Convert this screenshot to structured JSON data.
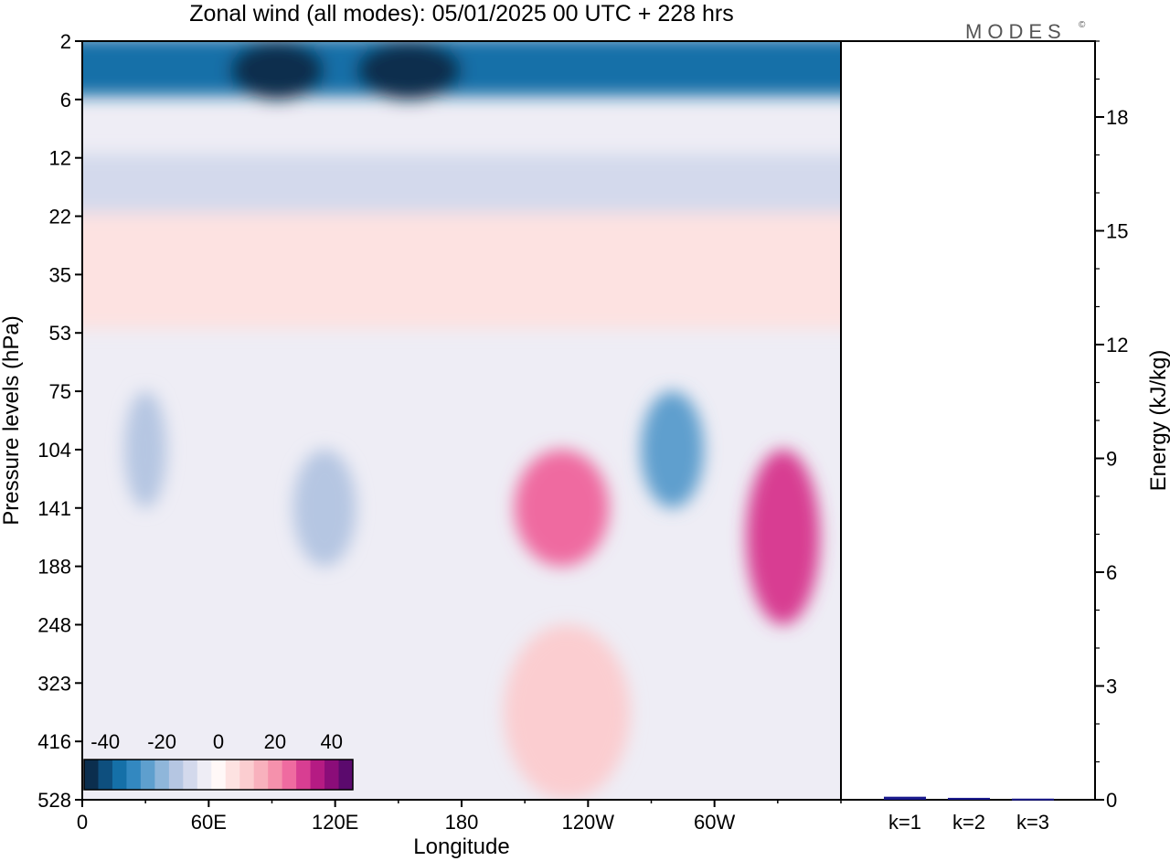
{
  "logo": {
    "text": "MODES",
    "mark": "©"
  },
  "chart_data": [
    {
      "type": "heatmap",
      "title": "Zonal wind (all modes):  05/01/2025  00 UTC  + 228 hrs",
      "xlabel": "Longitude",
      "ylabel": "Pressure levels (hPa)",
      "x_tick_labels": [
        "0",
        "60E",
        "120E",
        "180",
        "120W",
        "60W"
      ],
      "x_range_deg": [
        0,
        360
      ],
      "y_tick_labels": [
        "2",
        "6",
        "12",
        "22",
        "35",
        "53",
        "75",
        "104",
        "141",
        "188",
        "248",
        "323",
        "416",
        "528"
      ],
      "colorbar": {
        "tick_labels": [
          "-40",
          "-20",
          "0",
          "20",
          "40"
        ],
        "levels": [
          -45,
          -40,
          -35,
          -30,
          -25,
          -20,
          -15,
          -10,
          -5,
          0,
          5,
          10,
          15,
          20,
          25,
          30,
          35,
          40,
          45
        ],
        "colors": [
          "#0b2e4e",
          "#0e4f7e",
          "#1570a8",
          "#3388c0",
          "#5e9fce",
          "#8fb6da",
          "#b5c6e2",
          "#d3d9ec",
          "#eeedf5",
          "#fff8f7",
          "#fde2e1",
          "#fbcdd0",
          "#f8b1bd",
          "#f591ac",
          "#ef6ba0",
          "#d83e92",
          "#b51b83",
          "#8b0d79",
          "#5b0a6d"
        ]
      },
      "features": [
        {
          "lon": [
            0,
            360
          ],
          "levels": [
            "2",
            "6"
          ],
          "value": -35
        },
        {
          "lon": [
            70,
            115
          ],
          "levels": [
            "2",
            "6"
          ],
          "value": -45
        },
        {
          "lon": [
            130,
            180
          ],
          "levels": [
            "2",
            "6"
          ],
          "value": -45
        },
        {
          "lon": [
            0,
            360
          ],
          "levels": [
            "12",
            "22"
          ],
          "value": -10
        },
        {
          "lon": [
            0,
            360
          ],
          "levels": [
            "22",
            "53"
          ],
          "value": 5
        },
        {
          "lon": [
            20,
            40
          ],
          "levels": [
            "75",
            "141"
          ],
          "value": -15
        },
        {
          "lon": [
            100,
            130
          ],
          "levels": [
            "104",
            "188"
          ],
          "value": -15
        },
        {
          "lon": [
            205,
            250
          ],
          "levels": [
            "104",
            "188"
          ],
          "value": 25
        },
        {
          "lon": [
            265,
            295
          ],
          "levels": [
            "75",
            "141"
          ],
          "value": -25
        },
        {
          "lon": [
            315,
            350
          ],
          "levels": [
            "104",
            "248"
          ],
          "value": 30
        },
        {
          "lon": [
            200,
            260
          ],
          "levels": [
            "248",
            "528"
          ],
          "value": 10
        }
      ]
    },
    {
      "type": "bar",
      "categories": [
        "k=1",
        "k=2",
        "k=3"
      ],
      "values": [
        0.08,
        0.05,
        0.03
      ],
      "ylabel": "Energy (kJ/kg)",
      "ylim": [
        0,
        20
      ],
      "y_ticks": [
        0,
        3,
        6,
        9,
        12,
        15,
        18
      ],
      "bar_color": "#1a1a8c"
    }
  ]
}
